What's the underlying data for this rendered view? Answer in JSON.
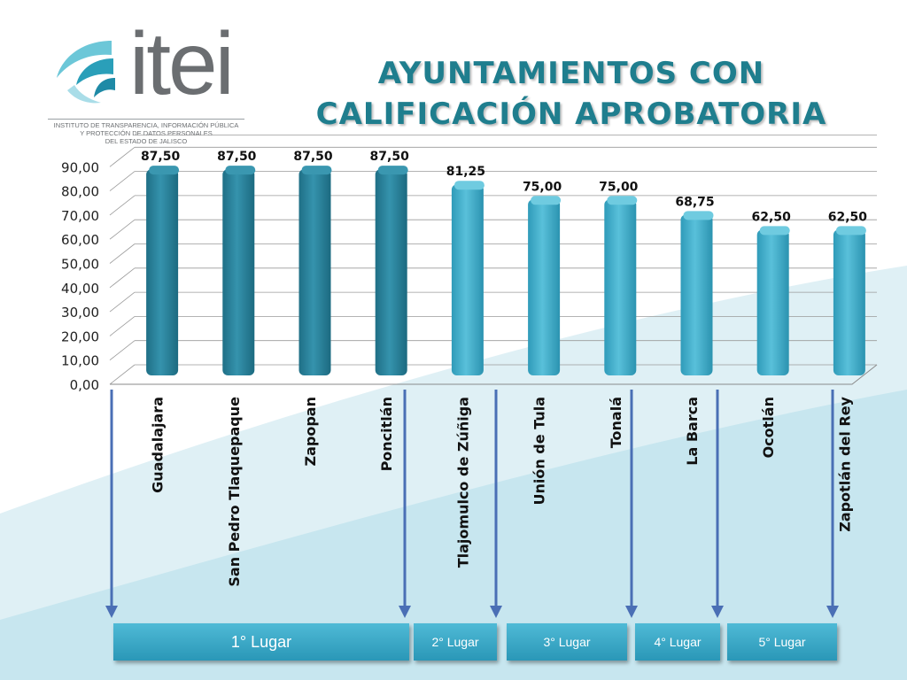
{
  "logo": {
    "wordmark": "itei",
    "subtitle_lines": [
      "INSTITUTO DE TRANSPARENCIA, INFORMACIÓN PÚBLICA",
      "Y PROTECCIÓN DE DATOS PERSONALES",
      "DEL ESTADO DE JALISCO"
    ]
  },
  "title_lines": [
    "AYUNTAMIENTOS CON",
    "CALIFICACIÓN APROBATORIA"
  ],
  "colors": {
    "title": "#1f7e8e",
    "bar_first": "#2b7f98",
    "bar_other": "#3fa9c6",
    "arrow": "#4a6fb5",
    "box": "#38a8c8"
  },
  "chart_data": {
    "type": "bar",
    "categories": [
      "Guadalajara",
      "San Pedro Tlaquepaque",
      "Zapopan",
      "Poncitlán",
      "Tlajomulco de Zúñiga",
      "Unión de Tula",
      "Tonalá",
      "La Barca",
      "Ocotlán",
      "Zapotlán del Rey"
    ],
    "values": [
      87.5,
      87.5,
      87.5,
      87.5,
      81.25,
      75.0,
      75.0,
      68.75,
      62.5,
      62.5
    ],
    "value_labels": [
      "87,50",
      "87,50",
      "87,50",
      "87,50",
      "81,25",
      "75,00",
      "75,00",
      "68,75",
      "62,50",
      "62,50"
    ],
    "y_ticks": [
      "0,00",
      "10,00",
      "20,00",
      "30,00",
      "40,00",
      "50,00",
      "60,00",
      "70,00",
      "80,00",
      "90,00"
    ],
    "ylim": [
      0,
      95
    ],
    "grid": true,
    "title": "",
    "xlabel": "",
    "ylabel": ""
  },
  "places": [
    {
      "label": "1° Lugar",
      "from": 0,
      "to": 3
    },
    {
      "label": "2° Lugar",
      "from": 4,
      "to": 4
    },
    {
      "label": "3° Lugar",
      "from": 5,
      "to": 6
    },
    {
      "label": "4° Lugar",
      "from": 7,
      "to": 7
    },
    {
      "label": "5° Lugar",
      "from": 8,
      "to": 9
    }
  ]
}
